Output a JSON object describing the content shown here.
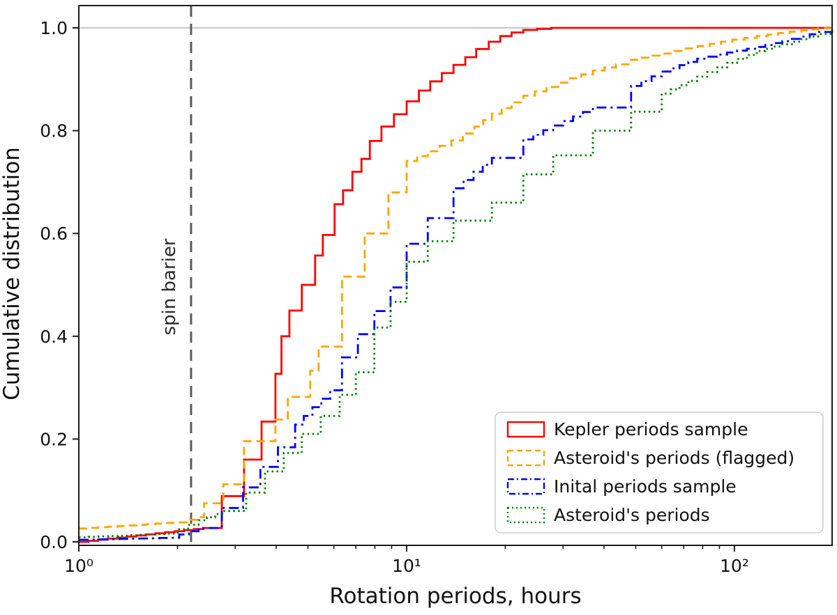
{
  "chart_data": {
    "type": "line",
    "subtype": "cumulative-step-histogram",
    "title": "",
    "xlabel": "Rotation periods, hours",
    "ylabel": "Cumulative distribution",
    "x_scale": "log",
    "xlim": [
      1,
      198.6
    ],
    "ylim": [
      -0.007,
      1.043
    ],
    "grid": "off",
    "x_ticks": [
      {
        "value": 1,
        "label": "10⁰"
      },
      {
        "value": 10,
        "label": "10¹"
      },
      {
        "value": 100,
        "label": "10²"
      }
    ],
    "y_ticks": [
      {
        "value": 0.0,
        "label": "0.0"
      },
      {
        "value": 0.2,
        "label": "0.2"
      },
      {
        "value": 0.4,
        "label": "0.4"
      },
      {
        "value": 0.6,
        "label": "0.6"
      },
      {
        "value": 0.8,
        "label": "0.8"
      },
      {
        "value": 1.0,
        "label": "1.0"
      }
    ],
    "reference_lines": [
      {
        "axis": "y",
        "value": 1.0,
        "color": "#cccccc",
        "style": "solid"
      },
      {
        "axis": "x",
        "value": 2.2,
        "color": "#5a5a5a",
        "style": "dashed"
      }
    ],
    "annotations": [
      {
        "text": "spin barier",
        "x": 2.0,
        "y": 0.5,
        "rotation": -90
      }
    ],
    "legend": {
      "position": "lower right"
    },
    "series": [
      {
        "name": "Kepler periods sample",
        "color": "#ff0000",
        "style": "solid",
        "x": [
          1.0,
          2.4,
          2.73,
          3.19,
          3.61,
          3.98,
          4.15,
          4.39,
          4.79,
          5.26,
          5.55,
          6.03,
          6.4,
          6.83,
          7.28,
          7.72,
          8.38,
          9.15,
          10.0,
          10.9,
          11.8,
          12.8,
          13.9,
          15.1,
          16.3,
          17.8,
          19.3,
          20.9,
          22.7,
          25.0,
          27.6,
          198.6
        ],
        "y": [
          0.0,
          0.027,
          0.089,
          0.16,
          0.234,
          0.327,
          0.4,
          0.45,
          0.5,
          0.557,
          0.597,
          0.657,
          0.684,
          0.72,
          0.745,
          0.78,
          0.808,
          0.832,
          0.857,
          0.878,
          0.896,
          0.912,
          0.928,
          0.943,
          0.959,
          0.973,
          0.984,
          0.991,
          0.996,
          0.998,
          1.0,
          1.0
        ]
      },
      {
        "name": "Asteroid's periods (flagged)",
        "color": "#ffa500",
        "style": "dashed",
        "x": [
          1.0,
          1.97,
          2.32,
          2.41,
          2.76,
          3.19,
          3.98,
          4.34,
          5.08,
          5.39,
          6.35,
          7.45,
          8.8,
          10.0,
          11.6,
          13.7,
          16.1,
          18.2,
          20.9,
          22.7,
          26.7,
          31.5,
          37.0,
          43.5,
          48.4,
          60.5,
          71.0,
          84.0,
          98.6,
          117.0,
          136.0,
          160.0,
          180.0,
          198.6
        ],
        "y": [
          0.026,
          0.038,
          0.048,
          0.075,
          0.112,
          0.196,
          0.238,
          0.282,
          0.333,
          0.38,
          0.516,
          0.6,
          0.68,
          0.741,
          0.76,
          0.781,
          0.808,
          0.833,
          0.855,
          0.868,
          0.885,
          0.902,
          0.917,
          0.929,
          0.938,
          0.95,
          0.96,
          0.969,
          0.977,
          0.984,
          0.99,
          0.995,
          0.999,
          1.0
        ]
      },
      {
        "name": "Inital periods sample",
        "color": "#0000ff",
        "style": "dashdot",
        "x": [
          1.0,
          1.89,
          2.32,
          2.73,
          3.17,
          3.58,
          4.05,
          4.57,
          5.16,
          5.85,
          6.35,
          7.1,
          7.97,
          8.93,
          10.0,
          11.6,
          13.9,
          16.0,
          18.2,
          22.7,
          28.0,
          37.0,
          48.4,
          60.0,
          77.0,
          95.0,
          117.0,
          140.0,
          160.0,
          180.0,
          198.6
        ],
        "y": [
          0.004,
          0.008,
          0.027,
          0.066,
          0.106,
          0.146,
          0.184,
          0.228,
          0.262,
          0.295,
          0.359,
          0.404,
          0.449,
          0.495,
          0.58,
          0.63,
          0.688,
          0.72,
          0.747,
          0.783,
          0.81,
          0.845,
          0.887,
          0.915,
          0.94,
          0.952,
          0.963,
          0.974,
          0.983,
          0.992,
          1.0
        ]
      },
      {
        "name": "Asteroid's periods",
        "color": "#008000",
        "style": "dotted",
        "x": [
          1.0,
          1.86,
          2.32,
          2.76,
          3.24,
          3.7,
          4.22,
          4.79,
          5.47,
          6.25,
          7.0,
          7.97,
          8.93,
          10.0,
          11.6,
          13.9,
          18.2,
          22.7,
          28.0,
          37.0,
          48.4,
          60.0,
          77.0,
          95.0,
          117.0,
          140.0,
          160.0,
          180.0,
          198.6
        ],
        "y": [
          0.009,
          0.016,
          0.042,
          0.06,
          0.096,
          0.137,
          0.173,
          0.21,
          0.245,
          0.286,
          0.33,
          0.417,
          0.467,
          0.545,
          0.585,
          0.625,
          0.66,
          0.715,
          0.752,
          0.8,
          0.837,
          0.872,
          0.905,
          0.932,
          0.955,
          0.968,
          0.978,
          0.988,
          1.0
        ]
      }
    ]
  }
}
